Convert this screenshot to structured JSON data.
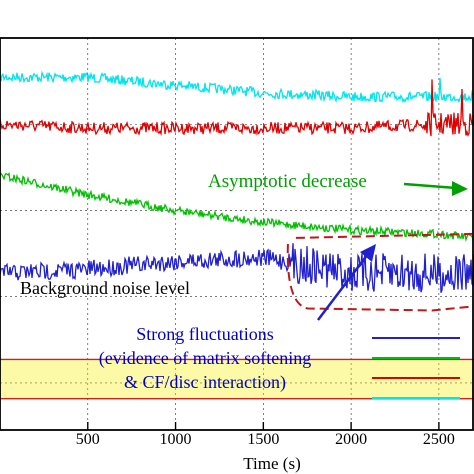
{
  "chart_data": {
    "type": "line",
    "title": "",
    "xlabel": "Time (s)",
    "ylabel": "",
    "xlim": [
      0,
      2700
    ],
    "xticks": [
      500,
      1000,
      1500,
      2000,
      2500
    ],
    "grid": true,
    "legend": "bottom-right",
    "series": [
      {
        "color": "#00e5ee",
        "x": [
          0,
          500,
          1000,
          1500,
          2000,
          2500,
          2700
        ],
        "y": [
          0.9,
          0.9,
          0.88,
          0.86,
          0.85,
          0.85,
          0.85
        ]
      },
      {
        "color": "#e00000",
        "x": [
          0,
          500,
          1000,
          1500,
          2000,
          2500,
          2700
        ],
        "y": [
          0.78,
          0.77,
          0.77,
          0.77,
          0.77,
          0.78,
          0.78
        ]
      },
      {
        "color": "#00c000",
        "x": [
          0,
          500,
          1000,
          1500,
          2000,
          2500,
          2700
        ],
        "y": [
          0.65,
          0.6,
          0.56,
          0.53,
          0.51,
          0.5,
          0.49
        ]
      },
      {
        "color": "#2020d0",
        "x": [
          0,
          500,
          1000,
          1500,
          2000,
          2500,
          2700
        ],
        "y": [
          0.4,
          0.41,
          0.43,
          0.44,
          0.4,
          0.4,
          0.4
        ]
      }
    ],
    "noise_band": {
      "y": [
        0.08,
        0.18
      ],
      "color": "#f6f000",
      "edge_color": "#d02020"
    },
    "annotations": [
      {
        "text": "Asymptotic decrease",
        "color": "#00a000"
      },
      {
        "text": "Background noise level",
        "color": "#000000"
      },
      {
        "lines": [
          "Strong fluctuations",
          "(evidence of matrix softening",
          "& CF/disc interaction)"
        ],
        "color": "#0000c0"
      }
    ]
  }
}
